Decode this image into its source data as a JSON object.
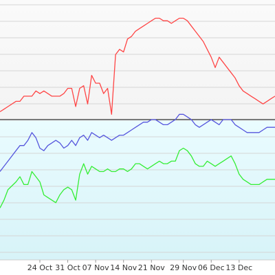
{
  "chart_data": {
    "type": "line",
    "title": "",
    "xlabel": "",
    "ylabel": "",
    "x_tick_labels": [
      "24 Oct",
      "31 Oct",
      "07 Nov",
      "14 Nov",
      "21 Nov",
      "29 Nov",
      "06 Dec",
      "13 Dec"
    ],
    "x_tick_days": [
      9,
      16,
      23,
      30,
      37,
      45,
      52,
      59
    ],
    "xlim": [
      -1,
      68
    ],
    "ylim": [
      0,
      100
    ],
    "grid": true,
    "reference_line_value": 54,
    "series": [
      {
        "color": "#ff4444",
        "x": [
          -1,
          0,
          1,
          3,
          4,
          5,
          6,
          7,
          8,
          9,
          10,
          11,
          12,
          13,
          14,
          15,
          16,
          17,
          18,
          19,
          20,
          21,
          22,
          23,
          24,
          25,
          26,
          27,
          28,
          29,
          30,
          31,
          32,
          33,
          34,
          35,
          36,
          37,
          38,
          39,
          40,
          41,
          42,
          43,
          44,
          45,
          46,
          47,
          48,
          49,
          50,
          51,
          52,
          53,
          54,
          55,
          56,
          57,
          58,
          59,
          60,
          61,
          62,
          63,
          64,
          65,
          66,
          67,
          68
        ],
        "y": [
          57,
          58,
          59,
          61,
          61,
          63,
          63,
          63,
          65,
          64,
          65,
          64,
          63,
          63,
          63,
          64,
          66,
          66,
          59,
          66,
          67,
          60,
          71,
          68,
          68,
          64,
          66,
          56,
          79,
          81,
          80,
          85,
          86,
          88,
          89,
          90,
          91,
          92,
          93,
          93,
          92,
          92,
          91,
          92,
          93,
          93,
          92,
          90,
          88,
          86,
          84,
          81,
          78,
          74,
          78,
          76,
          74,
          72,
          70,
          67,
          65,
          64,
          63,
          62,
          61,
          60,
          61,
          62,
          63
        ]
      },
      {
        "color": "#5555dd",
        "x": [
          -1,
          0,
          1,
          3,
          4,
          5,
          6,
          7,
          8,
          9,
          10,
          11,
          12,
          13,
          14,
          15,
          16,
          17,
          18,
          19,
          20,
          21,
          22,
          23,
          24,
          25,
          26,
          27,
          28,
          29,
          30,
          31,
          32,
          33,
          34,
          35,
          36,
          37,
          38,
          39,
          40,
          41,
          42,
          43,
          44,
          45,
          46,
          47,
          48,
          49,
          50,
          51,
          52,
          53,
          54,
          55,
          56,
          57,
          58,
          59,
          60,
          61,
          62,
          63,
          64,
          65,
          66,
          67,
          68
        ],
        "y": [
          34,
          36,
          38,
          42,
          44,
          44,
          46,
          49,
          47,
          43,
          42,
          44,
          45,
          46,
          45,
          43,
          44,
          46,
          44,
          47,
          48,
          46,
          49,
          48,
          47,
          48,
          47,
          46,
          47,
          48,
          48,
          49,
          50,
          51,
          52,
          53,
          53,
          54,
          54,
          53,
          52,
          52,
          53,
          54,
          56,
          56,
          55,
          54,
          52,
          51,
          52,
          53,
          54,
          53,
          52,
          54,
          54,
          54,
          52,
          51,
          50,
          49,
          49,
          49,
          49,
          50,
          51,
          51,
          51
        ]
      },
      {
        "color": "#33ee33",
        "x": [
          -1,
          0,
          1,
          3,
          4,
          5,
          6,
          7,
          8,
          9,
          10,
          11,
          12,
          13,
          14,
          15,
          16,
          17,
          18,
          19,
          20,
          21,
          22,
          23,
          24,
          25,
          26,
          27,
          28,
          29,
          30,
          31,
          32,
          33,
          34,
          35,
          36,
          37,
          38,
          39,
          40,
          41,
          42,
          43,
          44,
          45,
          46,
          47,
          48,
          49,
          50,
          51,
          52,
          53,
          54,
          55,
          56,
          57,
          58,
          59,
          60,
          61,
          62,
          63,
          64,
          65,
          66,
          67,
          68
        ],
        "y": [
          20,
          23,
          27,
          30,
          32,
          29,
          29,
          34,
          32,
          30,
          25,
          24,
          23,
          22,
          25,
          27,
          28,
          27,
          23,
          33,
          37,
          33,
          36,
          35,
          34,
          34,
          35,
          34,
          34,
          35,
          35,
          34,
          35,
          37,
          37,
          36,
          35,
          36,
          37,
          38,
          37,
          37,
          38,
          38,
          42,
          43,
          42,
          40,
          37,
          36,
          36,
          38,
          37,
          36,
          37,
          38,
          39,
          40,
          37,
          33,
          31,
          30,
          29,
          29,
          29,
          30,
          31,
          31,
          31
        ]
      }
    ]
  }
}
